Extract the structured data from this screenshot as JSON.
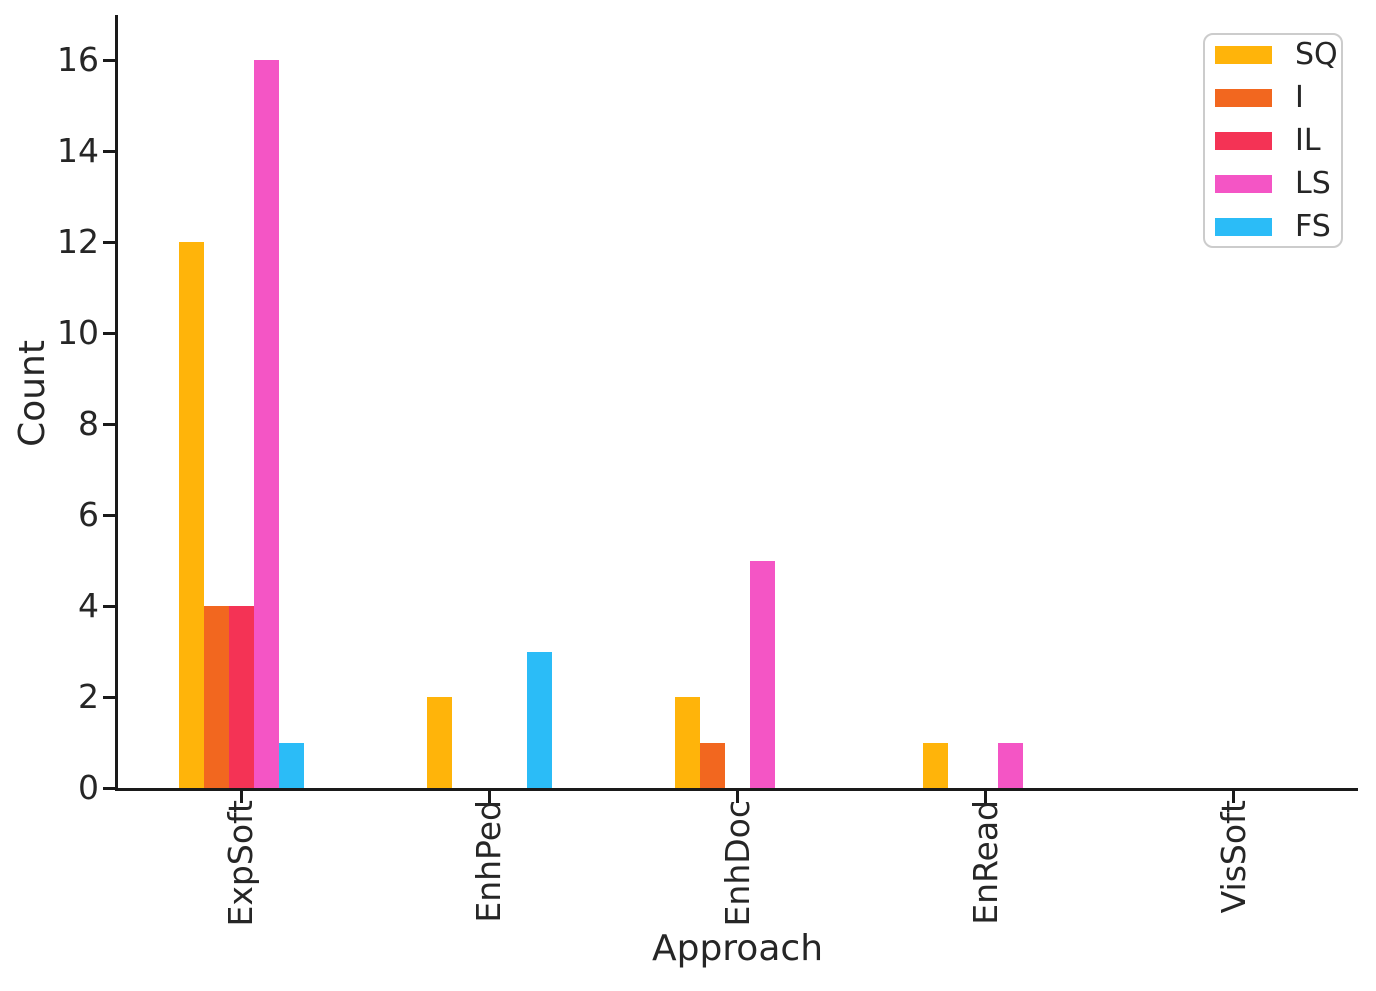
{
  "chart_data": {
    "type": "bar",
    "title": "",
    "xlabel": "Approach",
    "ylabel": "Count",
    "categories": [
      "ExpSoft",
      "EnhPed",
      "EnhDoc",
      "EnRead",
      "VisSoft"
    ],
    "series": [
      {
        "name": "SQ",
        "color": "#FFB40A",
        "values": [
          12,
          2,
          2,
          1,
          0
        ]
      },
      {
        "name": "I",
        "color": "#F2671F",
        "values": [
          4,
          0,
          1,
          0,
          0
        ]
      },
      {
        "name": "IL",
        "color": "#F43355",
        "values": [
          4,
          0,
          0,
          0,
          0
        ]
      },
      {
        "name": "LS",
        "color": "#F455C5",
        "values": [
          16,
          0,
          5,
          1,
          0
        ]
      },
      {
        "name": "FS",
        "color": "#2BBCF7",
        "values": [
          1,
          3,
          0,
          0,
          0
        ]
      }
    ],
    "ylim": [
      0,
      16
    ],
    "yticks": [
      0,
      2,
      4,
      6,
      8,
      10,
      12,
      14,
      16
    ],
    "legend_position": "upper right",
    "grid": false,
    "axis_color": "#1a1a1a",
    "text_color": "#262626",
    "background_color": "#ffffff"
  }
}
